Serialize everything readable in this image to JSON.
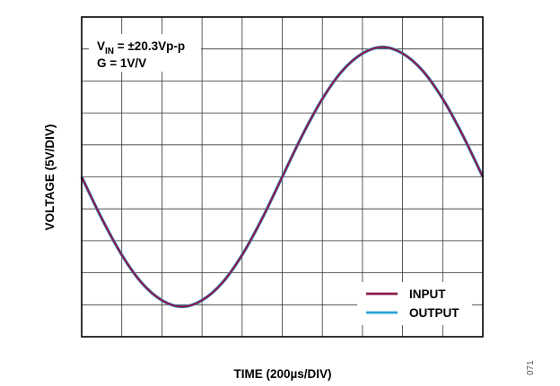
{
  "chart_data": {
    "type": "line",
    "title": "",
    "xlabel": "TIME (200µs/DIV)",
    "ylabel": "VOLTAGE (5V/DIV)",
    "x_unit": "µs",
    "y_unit": "V",
    "xlim": [
      0,
      2000
    ],
    "ylim": [
      -25,
      25
    ],
    "x_divisions": 10,
    "y_divisions": 10,
    "grid": true,
    "legend_position": "bottom-right",
    "annotation": {
      "vin_prefix": "V",
      "vin_subscript": "IN",
      "vin_rest": " = ±20.3Vp-p",
      "gain": "G = 1V/V"
    },
    "figure_number": "071",
    "series": [
      {
        "name": "INPUT",
        "color": "#8b1a4a",
        "x": [
          0,
          100,
          200,
          300,
          400,
          500,
          600,
          700,
          800,
          900,
          1000,
          1100,
          1200,
          1300,
          1400,
          1500,
          1600,
          1700,
          1800,
          1900,
          2000
        ],
        "y": [
          0,
          -6.5,
          -12.2,
          -16.6,
          -19.3,
          -20.3,
          -19.3,
          -16.6,
          -12.2,
          -6.5,
          0,
          6.5,
          12.2,
          16.6,
          19.3,
          20.3,
          19.3,
          16.6,
          12.2,
          6.5,
          0
        ]
      },
      {
        "name": "OUTPUT",
        "color": "#29a3d6",
        "x": [
          0,
          100,
          200,
          300,
          400,
          500,
          600,
          700,
          800,
          900,
          1000,
          1100,
          1200,
          1300,
          1400,
          1500,
          1600,
          1700,
          1800,
          1900,
          2000
        ],
        "y": [
          0,
          -6.5,
          -12.2,
          -16.6,
          -19.3,
          -20.3,
          -19.3,
          -16.6,
          -12.2,
          -6.5,
          0,
          6.5,
          12.2,
          16.6,
          19.3,
          20.3,
          19.3,
          16.6,
          12.2,
          6.5,
          0
        ]
      }
    ]
  }
}
